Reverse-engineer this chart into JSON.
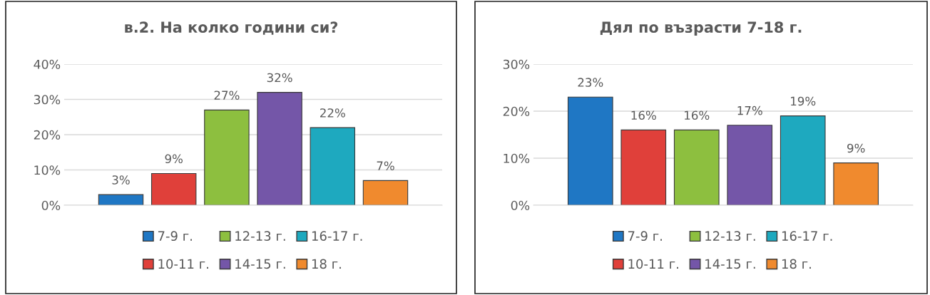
{
  "chart_data": [
    {
      "type": "bar",
      "title": "в.2. На колко години си?",
      "categories": [
        null
      ],
      "series": [
        {
          "name": "7-9 г.",
          "color": "#1f77c4",
          "values": [
            3
          ],
          "value_labels": [
            "3%"
          ]
        },
        {
          "name": "10-11 г.",
          "color": "#e0403a",
          "values": [
            9
          ],
          "value_labels": [
            "9%"
          ]
        },
        {
          "name": "12-13 г.",
          "color": "#8dbf3f",
          "values": [
            27
          ],
          "value_labels": [
            "27%"
          ]
        },
        {
          "name": "14-15 г.",
          "color": "#7456a8",
          "values": [
            32
          ],
          "value_labels": [
            "32%"
          ]
        },
        {
          "name": "16-17 г.",
          "color": "#1ea9bf",
          "values": [
            22
          ],
          "value_labels": [
            "22%"
          ]
        },
        {
          "name": "18 г.",
          "color": "#f08a2e",
          "values": [
            7
          ],
          "value_labels": [
            "7%"
          ]
        }
      ],
      "ylim": [
        0,
        40
      ],
      "yticks": [
        {
          "value": 0,
          "label": "0%"
        },
        {
          "value": 10,
          "label": "10%"
        },
        {
          "value": 20,
          "label": "20%"
        },
        {
          "value": 30,
          "label": "30%"
        },
        {
          "value": 40,
          "label": "40%"
        }
      ],
      "grid": "y",
      "legend": "bottom"
    },
    {
      "type": "bar",
      "title": "Дял по възрасти 7-18 г.",
      "categories": [
        null
      ],
      "series": [
        {
          "name": "7-9 г.",
          "color": "#1f77c4",
          "values": [
            23
          ],
          "value_labels": [
            "23%"
          ]
        },
        {
          "name": "10-11 г.",
          "color": "#e0403a",
          "values": [
            16
          ],
          "value_labels": [
            "16%"
          ]
        },
        {
          "name": "12-13 г.",
          "color": "#8dbf3f",
          "values": [
            16
          ],
          "value_labels": [
            "16%"
          ]
        },
        {
          "name": "14-15 г.",
          "color": "#7456a8",
          "values": [
            17
          ],
          "value_labels": [
            "17%"
          ]
        },
        {
          "name": "16-17 г.",
          "color": "#1ea9bf",
          "values": [
            19
          ],
          "value_labels": [
            "19%"
          ]
        },
        {
          "name": "18 г.",
          "color": "#f08a2e",
          "values": [
            9
          ],
          "value_labels": [
            "9%"
          ]
        }
      ],
      "ylim": [
        0,
        30
      ],
      "yticks": [
        {
          "value": 0,
          "label": "0%"
        },
        {
          "value": 10,
          "label": "10%"
        },
        {
          "value": 20,
          "label": "20%"
        },
        {
          "value": 30,
          "label": "30%"
        }
      ],
      "grid": "y",
      "legend": "bottom"
    }
  ]
}
